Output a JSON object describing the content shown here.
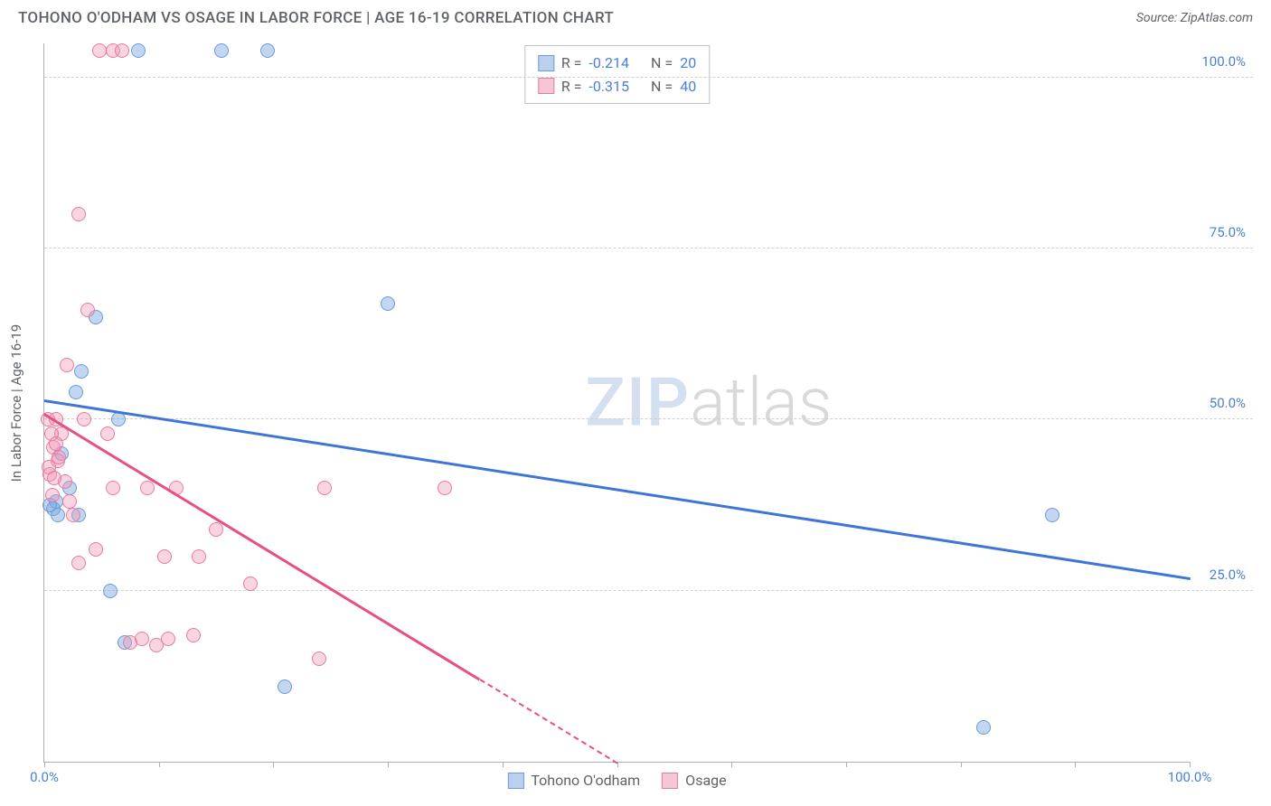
{
  "title": "TOHONO O'ODHAM VS OSAGE IN LABOR FORCE | AGE 16-19 CORRELATION CHART",
  "source_label": "Source: ZipAtlas.com",
  "watermark": {
    "part1": "ZIP",
    "part2": "atlas"
  },
  "y_axis_label": "In Labor Force | Age 16-19",
  "chart": {
    "type": "scatter",
    "xlim": [
      0,
      100
    ],
    "ylim": [
      0,
      105
    ],
    "x_ticks": [
      0,
      10,
      20,
      30,
      40,
      50,
      60,
      70,
      80,
      90,
      100
    ],
    "x_tick_labels": {
      "0": "0.0%",
      "100": "100.0%"
    },
    "y_gridlines": [
      25,
      50,
      75,
      100
    ],
    "y_tick_labels": {
      "25": "25.0%",
      "50": "50.0%",
      "75": "75.0%",
      "100": "100.0%"
    },
    "background_color": "#ffffff",
    "grid_color": "#d0d0d0",
    "axis_color": "#b0b0b0",
    "tick_label_color": "#4a7fd8",
    "point_radius": 8,
    "point_border_width": 1.5,
    "series": [
      {
        "name": "Tohono O'odham",
        "fill": "rgba(120, 165, 225, 0.45)",
        "stroke": "#6b9bd8",
        "line_color": "#3f76d6",
        "legend_swatch_fill": "#b9d0ef",
        "legend_swatch_border": "#6b9bd8",
        "r_value": "-0.214",
        "n_value": "20",
        "trend": {
          "x1": 0,
          "y1": 53,
          "x2": 100,
          "y2": 27,
          "dashed_from_x": null
        },
        "points": [
          {
            "x": 1.0,
            "y": 38
          },
          {
            "x": 0.8,
            "y": 37
          },
          {
            "x": 2.2,
            "y": 40
          },
          {
            "x": 4.5,
            "y": 65
          },
          {
            "x": 3.2,
            "y": 57
          },
          {
            "x": 2.8,
            "y": 54
          },
          {
            "x": 6.5,
            "y": 50
          },
          {
            "x": 1.5,
            "y": 45
          },
          {
            "x": 3.0,
            "y": 36
          },
          {
            "x": 5.8,
            "y": 25
          },
          {
            "x": 7.0,
            "y": 17.5
          },
          {
            "x": 21.0,
            "y": 11
          },
          {
            "x": 30.0,
            "y": 67
          },
          {
            "x": 15.5,
            "y": 104
          },
          {
            "x": 19.5,
            "y": 104
          },
          {
            "x": 8.2,
            "y": 104
          },
          {
            "x": 82.0,
            "y": 5
          },
          {
            "x": 88.0,
            "y": 36
          },
          {
            "x": 1.2,
            "y": 36
          },
          {
            "x": 0.5,
            "y": 37.5
          }
        ]
      },
      {
        "name": "Osage",
        "fill": "rgba(240, 150, 180, 0.40)",
        "stroke": "#e77aa0",
        "line_color": "#e94f87",
        "legend_swatch_fill": "#f5c6d6",
        "legend_swatch_border": "#e77aa0",
        "r_value": "-0.315",
        "n_value": "40",
        "trend": {
          "x1": 0,
          "y1": 51,
          "x2": 50,
          "y2": 0,
          "dashed_from_x": 38
        },
        "points": [
          {
            "x": 1.5,
            "y": 48
          },
          {
            "x": 1.0,
            "y": 50
          },
          {
            "x": 0.8,
            "y": 46
          },
          {
            "x": 1.2,
            "y": 44
          },
          {
            "x": 2.0,
            "y": 58
          },
          {
            "x": 3.8,
            "y": 66
          },
          {
            "x": 3.5,
            "y": 50
          },
          {
            "x": 5.5,
            "y": 48
          },
          {
            "x": 0.5,
            "y": 42
          },
          {
            "x": 1.8,
            "y": 41
          },
          {
            "x": 2.5,
            "y": 36
          },
          {
            "x": 4.5,
            "y": 31
          },
          {
            "x": 6.0,
            "y": 40
          },
          {
            "x": 9.0,
            "y": 40
          },
          {
            "x": 10.5,
            "y": 30
          },
          {
            "x": 13.5,
            "y": 30
          },
          {
            "x": 15.0,
            "y": 34
          },
          {
            "x": 18.0,
            "y": 26
          },
          {
            "x": 7.5,
            "y": 17.5
          },
          {
            "x": 8.5,
            "y": 18
          },
          {
            "x": 9.8,
            "y": 17
          },
          {
            "x": 10.8,
            "y": 18
          },
          {
            "x": 13.0,
            "y": 18.5
          },
          {
            "x": 3.0,
            "y": 80
          },
          {
            "x": 24.5,
            "y": 40
          },
          {
            "x": 35.0,
            "y": 40
          },
          {
            "x": 24.0,
            "y": 15
          },
          {
            "x": 4.8,
            "y": 104
          },
          {
            "x": 6.0,
            "y": 104
          },
          {
            "x": 6.8,
            "y": 104
          },
          {
            "x": 0.3,
            "y": 50
          },
          {
            "x": 0.6,
            "y": 48
          },
          {
            "x": 1.0,
            "y": 46.5
          },
          {
            "x": 1.3,
            "y": 44.5
          },
          {
            "x": 0.4,
            "y": 43
          },
          {
            "x": 0.9,
            "y": 41.5
          },
          {
            "x": 2.2,
            "y": 38
          },
          {
            "x": 3.0,
            "y": 29
          },
          {
            "x": 11.5,
            "y": 40
          },
          {
            "x": 0.7,
            "y": 39
          }
        ]
      }
    ]
  },
  "legend_top": {
    "r_label": "R =",
    "n_label": "N ="
  },
  "legend_bottom_labels": [
    "Tohono O'odham",
    "Osage"
  ]
}
